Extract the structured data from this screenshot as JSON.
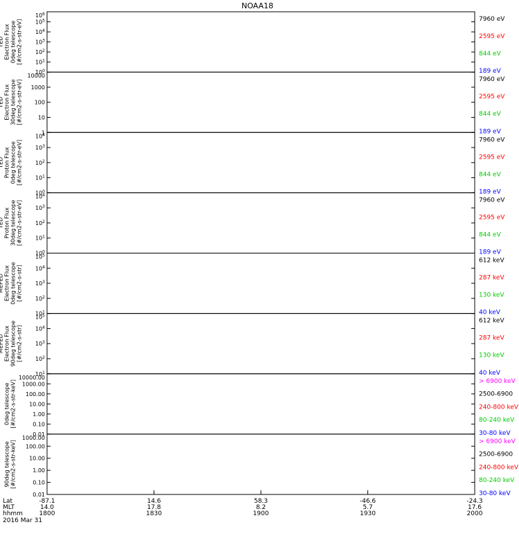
{
  "chart_data": {
    "type": "line",
    "title": "NOAA18",
    "date": "2016 Mar 31",
    "x_axis": {
      "time_range": [
        "1800",
        "2000"
      ],
      "rows": [
        {
          "label": "Lat",
          "values": [
            "-87.1",
            "14.6",
            "58.3",
            "-46.6",
            "-24.3"
          ]
        },
        {
          "label": "MLT",
          "values": [
            "14.0",
            "17.8",
            "8.2",
            "5.7",
            "17.6"
          ]
        },
        {
          "label": "hhmm",
          "values": [
            "1800",
            "1830",
            "1900",
            "1930",
            "2000"
          ]
        }
      ]
    },
    "panels": [
      {
        "id": "ted-e-0",
        "ylabel": [
          "TED",
          "Electron Flux",
          "0deg telescope",
          "[#/cm2-s-str-eV]"
        ],
        "ylog": true,
        "ylim": [
          1,
          1000000
        ],
        "tick_labels": [
          "10^0",
          "10^1",
          "10^2",
          "10^3",
          "10^4",
          "10^5",
          "10^6"
        ],
        "legend": [
          {
            "text": "7960 eV",
            "color": "#000000"
          },
          {
            "text": "2595 eV",
            "color": "#ff0000"
          },
          {
            "text": "844 eV",
            "color": "#00cc00"
          },
          {
            "text": "189 eV",
            "color": "#0000ff"
          }
        ]
      },
      {
        "id": "ted-e-30",
        "ylabel": [
          "TED",
          "Electron Flux",
          "30deg telescope",
          "[#/cm2-s-str-eV]"
        ],
        "ylog": true,
        "ylim": [
          1,
          10000
        ],
        "tick_labels": [
          "1",
          "10",
          "100",
          "1000",
          "10000"
        ],
        "legend": [
          {
            "text": "7960 eV",
            "color": "#000000"
          },
          {
            "text": "2595 eV",
            "color": "#ff0000"
          },
          {
            "text": "844 eV",
            "color": "#00cc00"
          },
          {
            "text": "189 eV",
            "color": "#0000ff"
          }
        ]
      },
      {
        "id": "ted-p-0",
        "ylabel": [
          "TED",
          "Proton Flux",
          "0deg telescope",
          "[#/cm2-s-str-eV]"
        ],
        "ylog": true,
        "ylim": [
          1,
          10000
        ],
        "tick_labels": [
          "10^0",
          "10^1",
          "10^2",
          "10^3",
          "10^4"
        ],
        "legend": [
          {
            "text": "7960 eV",
            "color": "#000000"
          },
          {
            "text": "2595 eV",
            "color": "#ff0000"
          },
          {
            "text": "844 eV",
            "color": "#00cc00"
          },
          {
            "text": "189 eV",
            "color": "#0000ff"
          }
        ]
      },
      {
        "id": "ted-p-30",
        "ylabel": [
          "TED",
          "Proton Flux",
          "30deg telescope",
          "[#/cm2-s-str-eV]"
        ],
        "ylog": true,
        "ylim": [
          1,
          10000
        ],
        "tick_labels": [
          "10^0",
          "10^1",
          "10^2",
          "10^3",
          "10^4"
        ],
        "legend": [
          {
            "text": "7960 eV",
            "color": "#000000"
          },
          {
            "text": "2595 eV",
            "color": "#ff0000"
          },
          {
            "text": "844 eV",
            "color": "#00cc00"
          },
          {
            "text": "189 eV",
            "color": "#0000ff"
          }
        ]
      },
      {
        "id": "meped-e-0",
        "ylabel": [
          "MEPED",
          "Electron Flux",
          "0deg telescope",
          "[#/cm2-s-str]"
        ],
        "ylog": true,
        "ylim": [
          10,
          100000
        ],
        "tick_labels": [
          "10^1",
          "10^2",
          "10^3",
          "10^4",
          "10^5"
        ],
        "legend": [
          {
            "text": "612 keV",
            "color": "#000000"
          },
          {
            "text": "287 keV",
            "color": "#ff0000"
          },
          {
            "text": "130 keV",
            "color": "#00cc00"
          },
          {
            "text": "40 keV",
            "color": "#0000ff"
          }
        ]
      },
      {
        "id": "meped-e-90",
        "ylabel": [
          "MEPED",
          "Electron Flux",
          "90deg telescope",
          "[#/cm2-s-str]"
        ],
        "ylog": true,
        "ylim": [
          10,
          100000
        ],
        "tick_labels": [
          "10^1",
          "10^2",
          "10^3",
          "10^4",
          "10^5"
        ],
        "legend": [
          {
            "text": "612 keV",
            "color": "#000000"
          },
          {
            "text": "287 keV",
            "color": "#ff0000"
          },
          {
            "text": "130 keV",
            "color": "#00cc00"
          },
          {
            "text": "40 keV",
            "color": "#0000ff"
          }
        ]
      },
      {
        "id": "meped-p-0",
        "ylabel": [
          "0deg telescope",
          "[#/cm2-s-str-keV]"
        ],
        "ylog": true,
        "ylim": [
          0.01,
          10000
        ],
        "tick_labels": [
          "0.01",
          "0.10",
          "1.00",
          "10.00",
          "100.00",
          "1000.00",
          "10000.00"
        ],
        "legend": [
          {
            "text": "> 6900 keV",
            "color": "#ff00ff"
          },
          {
            "text": "2500-6900",
            "color": "#000000"
          },
          {
            "text": "240-800 keV",
            "color": "#ff0000"
          },
          {
            "text": "80-240 keV",
            "color": "#00cc00"
          },
          {
            "text": "30-80 keV",
            "color": "#0000ff"
          }
        ]
      },
      {
        "id": "meped-p-90",
        "ylabel": [
          "90deg telescope",
          "[#/cm2-s-str-keV]"
        ],
        "ylog": true,
        "ylim": [
          0.01,
          1000
        ],
        "tick_labels": [
          "0.01",
          "0.10",
          "1.00",
          "10.00",
          "100.00",
          "1000.00"
        ],
        "legend": [
          {
            "text": "> 6900 keV",
            "color": "#ff00ff"
          },
          {
            "text": "2500-6900",
            "color": "#000000"
          },
          {
            "text": "240-800 keV",
            "color": "#ff0000"
          },
          {
            "text": "80-240 keV",
            "color": "#00cc00"
          },
          {
            "text": "30-80 keV",
            "color": "#0000ff"
          }
        ]
      }
    ]
  }
}
